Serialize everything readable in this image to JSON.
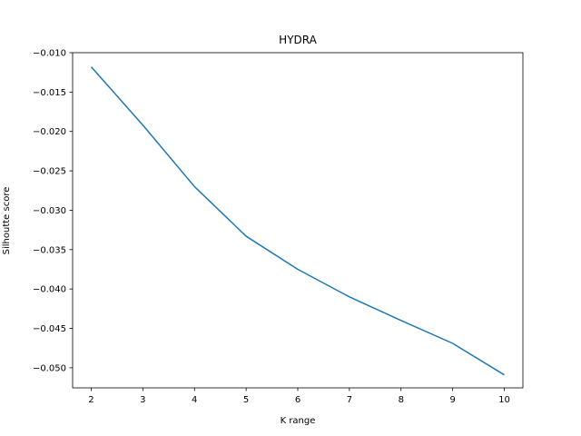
{
  "chart_data": {
    "type": "line",
    "title": "HYDRA",
    "xlabel": "K range",
    "ylabel": "Silhoutte score",
    "x": [
      2,
      3,
      4,
      5,
      6,
      7,
      8,
      9,
      10
    ],
    "series": [
      {
        "values": [
          -0.0118,
          -0.0192,
          -0.027,
          -0.0333,
          -0.0375,
          -0.041,
          -0.044,
          -0.0469,
          -0.0509
        ],
        "color": "#1f77b4"
      }
    ],
    "xlim": [
      1.64,
      10.36
    ],
    "ylim": [
      -0.05255,
      -0.01
    ],
    "xticks": [
      "2",
      "3",
      "4",
      "5",
      "6",
      "7",
      "8",
      "9",
      "10"
    ],
    "yticks": [
      "−0.010",
      "−0.015",
      "−0.020",
      "−0.025",
      "−0.030",
      "−0.035",
      "−0.040",
      "−0.045",
      "−0.050"
    ],
    "ytick_values": [
      -0.01,
      -0.015,
      -0.02,
      -0.025,
      -0.03,
      -0.035,
      -0.04,
      -0.045,
      -0.05
    ],
    "grid": false,
    "legend": "none"
  }
}
